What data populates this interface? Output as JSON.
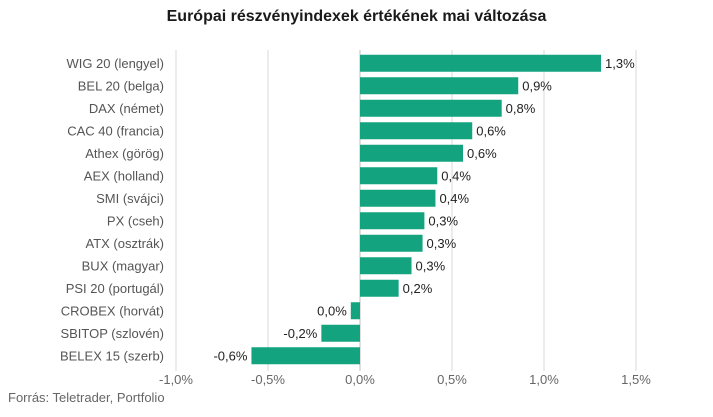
{
  "chart_data": {
    "type": "bar",
    "orientation": "horizontal",
    "title": "Európai részvényindexek értékének mai változása",
    "categories": [
      "WIG 20 (lengyel)",
      "BEL 20 (belga)",
      "DAX (német)",
      "CAC 40 (francia)",
      "Athex (görög)",
      "AEX (holland)",
      "SMI (svájci)",
      "PX (cseh)",
      "ATX (osztrák)",
      "BUX (magyar)",
      "PSI 20 (portugál)",
      "CROBEX (horvát)",
      "SBITOP (szlovén)",
      "BELEX 15 (szerb)"
    ],
    "values": [
      1.31,
      0.86,
      0.77,
      0.61,
      0.56,
      0.42,
      0.41,
      0.35,
      0.34,
      0.28,
      0.21,
      -0.05,
      -0.21,
      -0.59
    ],
    "value_labels": [
      "1,3%",
      "0,9%",
      "0,8%",
      "0,6%",
      "0,6%",
      "0,4%",
      "0,4%",
      "0,3%",
      "0,3%",
      "0,3%",
      "0,2%",
      "0,0%",
      "-0,2%",
      "-0,6%"
    ],
    "xlim": [
      -1.0,
      1.5
    ],
    "x_ticks": [
      -1.0,
      -0.5,
      0.0,
      0.5,
      1.0,
      1.5
    ],
    "x_tick_labels": [
      "-1,0%",
      "-0,5%",
      "0,0%",
      "0,5%",
      "1,0%",
      "1,5%"
    ],
    "grid": true,
    "bar_color": "#13a37f"
  },
  "source": "Forrás: Teletrader, Portfolio"
}
